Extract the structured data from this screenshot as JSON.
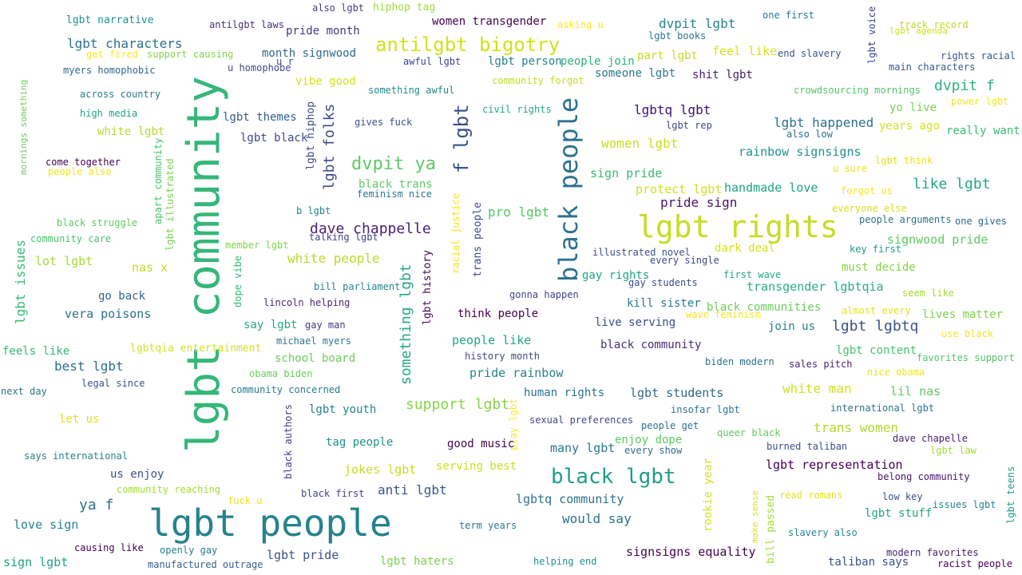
{
  "words": [
    {
      "text": "lgbt community",
      "color": "#35b779"
    },
    {
      "text": "lgbt people",
      "color": "#26828e"
    },
    {
      "text": "lgbt rights",
      "color": "#c2df23"
    },
    {
      "text": "black people",
      "color": "#2c728e"
    },
    {
      "text": "antilgbt bigotry",
      "color": "#d0e11c"
    },
    {
      "text": "black lgbt",
      "color": "#1f9e89"
    },
    {
      "text": "f lgbt",
      "color": "#3b528b"
    },
    {
      "text": "dvpit ya",
      "color": "#5ec962"
    },
    {
      "text": "lgbt folks",
      "color": "#3e4989"
    },
    {
      "text": "something lgbt",
      "color": "#22a884"
    },
    {
      "text": "dave chappelle",
      "color": "#482173"
    },
    {
      "text": "lgbt narrative",
      "color": "#21918c"
    },
    {
      "text": "antilgbt laws",
      "color": "#472d7b"
    },
    {
      "text": "also lgbt",
      "color": "#433e85"
    },
    {
      "text": "hiphop tag",
      "color": "#a0da39"
    },
    {
      "text": "women transgender",
      "color": "#440154"
    },
    {
      "text": "asking u",
      "color": "#fde725"
    },
    {
      "text": "one first",
      "color": "#2a788e"
    },
    {
      "text": "lgbt voice",
      "color": "#404688"
    },
    {
      "text": "track record",
      "color": "#b5de2b"
    },
    {
      "text": "lgbt agenda",
      "color": "#cae11f"
    },
    {
      "text": "lgbt characters",
      "color": "#2c728e"
    },
    {
      "text": "pride month",
      "color": "#443983"
    },
    {
      "text": "dvpit lgbt",
      "color": "#25848e"
    },
    {
      "text": "lgbt books",
      "color": "#2a768e"
    },
    {
      "text": "end slavery",
      "color": "#3a548c"
    },
    {
      "text": "rights racial",
      "color": "#3b528b"
    },
    {
      "text": "get fired",
      "color": "#fde725"
    },
    {
      "text": "support causing",
      "color": "#84d44b"
    },
    {
      "text": "month signwood",
      "color": "#31688e"
    },
    {
      "text": "awful lgbt",
      "color": "#414487"
    },
    {
      "text": "lgbt person",
      "color": "#26828e"
    },
    {
      "text": "people join",
      "color": "#2db27d"
    },
    {
      "text": "part lgbt",
      "color": "#c0df25"
    },
    {
      "text": "feel like",
      "color": "#d8e219"
    },
    {
      "text": "main characters",
      "color": "#375a8c"
    },
    {
      "text": "myers homophobic",
      "color": "#31688e"
    },
    {
      "text": "u homophobe",
      "color": "#3e4989"
    },
    {
      "text": "u r",
      "color": "#3d4d8a"
    },
    {
      "text": "someone lgbt",
      "color": "#2a788e"
    },
    {
      "text": "shit lgbt",
      "color": "#481a6c"
    },
    {
      "text": "vibe good",
      "color": "#d2e21b"
    },
    {
      "text": "community forgot",
      "color": "#c2df23"
    },
    {
      "text": "something awful",
      "color": "#238a8d"
    },
    {
      "text": "dvpit f",
      "color": "#2db27d"
    },
    {
      "text": "crowdsourcing mornings",
      "color": "#54c568"
    },
    {
      "text": "power lgbt",
      "color": "#f1e51d"
    },
    {
      "text": "across country",
      "color": "#287c8e"
    },
    {
      "text": "civil rights",
      "color": "#22a785"
    },
    {
      "text": "yo live",
      "color": "#7ad151"
    },
    {
      "text": "high media",
      "color": "#1fa187"
    },
    {
      "text": "lgbt themes",
      "color": "#355f8d"
    },
    {
      "text": "gives fuck",
      "color": "#3b528b"
    },
    {
      "text": "lgbtq lgbt",
      "color": "#3b0f70"
    },
    {
      "text": "lgbt rep",
      "color": "#404688"
    },
    {
      "text": "lgbt happened",
      "color": "#2c728e"
    },
    {
      "text": "years ago",
      "color": "#d5e21a"
    },
    {
      "text": "really want",
      "color": "#3bbb75"
    },
    {
      "text": "also low",
      "color": "#2e6f8e"
    },
    {
      "text": "white lgbt",
      "color": "#b2dd2d"
    },
    {
      "text": "lgbt black",
      "color": "#3f4889"
    },
    {
      "text": "women lgbt",
      "color": "#c8e020"
    },
    {
      "text": "lgbt hiphop",
      "color": "#3f4788"
    },
    {
      "text": "mornings something",
      "color": "#6ccd5a"
    },
    {
      "text": "come together",
      "color": "#440154"
    },
    {
      "text": "people also",
      "color": "#f4e61e"
    },
    {
      "text": "apart community",
      "color": "#4ac16d"
    },
    {
      "text": "lgbt illustrated",
      "color": "#7ad151"
    },
    {
      "text": "rainbow signsigns",
      "color": "#21918c"
    },
    {
      "text": "lgbt think",
      "color": "#e7e419"
    },
    {
      "text": "u sure",
      "color": "#eae51a"
    },
    {
      "text": "black trans",
      "color": "#5ec962"
    },
    {
      "text": "feminism nice",
      "color": "#2a788e"
    },
    {
      "text": "sign pride",
      "color": "#3aba76"
    },
    {
      "text": "protect lgbt",
      "color": "#d2e21b"
    },
    {
      "text": "handmade love",
      "color": "#20a486"
    },
    {
      "text": "forgot us",
      "color": "#f8e621"
    },
    {
      "text": "like lgbt",
      "color": "#22a785"
    },
    {
      "text": "b lgbt",
      "color": "#26828e"
    },
    {
      "text": "pride sign",
      "color": "#481467"
    },
    {
      "text": "everyone else",
      "color": "#d8e219"
    },
    {
      "text": "black struggle",
      "color": "#5ec962"
    },
    {
      "text": "people arguments",
      "color": "#2c728e"
    },
    {
      "text": "one gives",
      "color": "#31688e"
    },
    {
      "text": "racial justice",
      "color": "#f1e51d"
    },
    {
      "text": "trans people",
      "color": "#3e4989"
    },
    {
      "text": "pro lgbt",
      "color": "#54c568"
    },
    {
      "text": "community care",
      "color": "#4ac16d"
    },
    {
      "text": "talking lgbt",
      "color": "#414487"
    },
    {
      "text": "signwood pride",
      "color": "#5ec962"
    },
    {
      "text": "lgbt issues",
      "color": "#3aba76"
    },
    {
      "text": "member lgbt",
      "color": "#7fd34e"
    },
    {
      "text": "dark deal",
      "color": "#d8e219"
    },
    {
      "text": "key first",
      "color": "#1e9b8a"
    },
    {
      "text": "lot lgbt",
      "color": "#a5db36"
    },
    {
      "text": "white people",
      "color": "#b8de29"
    },
    {
      "text": "illustrated novel",
      "color": "#3b528b"
    },
    {
      "text": "every single",
      "color": "#3e4989"
    },
    {
      "text": "must decide",
      "color": "#86d549"
    },
    {
      "text": "nas x",
      "color": "#b8de29"
    },
    {
      "text": "dope vibe",
      "color": "#35b779"
    },
    {
      "text": "lgbt history",
      "color": "#440154"
    },
    {
      "text": "gay rights",
      "color": "#20a486"
    },
    {
      "text": "first wave",
      "color": "#22a785"
    },
    {
      "text": "gay students",
      "color": "#3e4989"
    },
    {
      "text": "seem like",
      "color": "#a0da39"
    },
    {
      "text": "bill parliament",
      "color": "#24868e"
    },
    {
      "text": "transgender lgbtqia",
      "color": "#28ae80"
    },
    {
      "text": "go back",
      "color": "#31688e"
    },
    {
      "text": "gonna happen",
      "color": "#414487"
    },
    {
      "text": "lincoln helping",
      "color": "#482878"
    },
    {
      "text": "kill sister",
      "color": "#2a788e"
    },
    {
      "text": "black communities",
      "color": "#6ccd5a"
    },
    {
      "text": "almost every",
      "color": "#e5e419"
    },
    {
      "text": "lives matter",
      "color": "#81d34d"
    },
    {
      "text": "vera poisons",
      "color": "#2c728e"
    },
    {
      "text": "think people",
      "color": "#440154"
    },
    {
      "text": "wave feminism",
      "color": "#f6e620"
    },
    {
      "text": "say lgbt",
      "color": "#23a983"
    },
    {
      "text": "gay man",
      "color": "#453781"
    },
    {
      "text": "live serving",
      "color": "#3e4989"
    },
    {
      "text": "join us",
      "color": "#26828e"
    },
    {
      "text": "lgbt lgbtq",
      "color": "#3b528b"
    },
    {
      "text": "use black",
      "color": "#f6e620"
    },
    {
      "text": "michael myers",
      "color": "#2a788e"
    },
    {
      "text": "people like",
      "color": "#22a785"
    },
    {
      "text": "black community",
      "color": "#472c7a"
    },
    {
      "text": "feels like",
      "color": "#35b779"
    },
    {
      "text": "lgbtqia entertainment",
      "color": "#d5e21a"
    },
    {
      "text": "school board",
      "color": "#6ccd5a"
    },
    {
      "text": "history month",
      "color": "#3e4989"
    },
    {
      "text": "lgbt content",
      "color": "#4ac16d"
    },
    {
      "text": "favorites support",
      "color": "#52c569"
    },
    {
      "text": "biden modern",
      "color": "#2d708e"
    },
    {
      "text": "best lgbt",
      "color": "#2d708e"
    },
    {
      "text": "pride rainbow",
      "color": "#25848e"
    },
    {
      "text": "sales pitch",
      "color": "#481f70"
    },
    {
      "text": "nice obama",
      "color": "#f1e51d"
    },
    {
      "text": "obama biden",
      "color": "#6ccd5a"
    },
    {
      "text": "legal since",
      "color": "#3b528b"
    },
    {
      "text": "community concerned",
      "color": "#287c8e"
    },
    {
      "text": "human rights",
      "color": "#2c728e"
    },
    {
      "text": "lgbt students",
      "color": "#31688e"
    },
    {
      "text": "white man",
      "color": "#d0e11c"
    },
    {
      "text": "lil nas",
      "color": "#5ec962"
    },
    {
      "text": "next day",
      "color": "#2a788e"
    },
    {
      "text": "support lgbt",
      "color": "#86d549"
    },
    {
      "text": "insofar lgbt",
      "color": "#2c728e"
    },
    {
      "text": "lgbt youth",
      "color": "#26828e"
    },
    {
      "text": "international lgbt",
      "color": "#2c728e"
    },
    {
      "text": "let us",
      "color": "#e2e418"
    },
    {
      "text": "sexual preferences",
      "color": "#3e4989"
    },
    {
      "text": "black authors",
      "color": "#433e85"
    },
    {
      "text": "play lgbt",
      "color": "#fde725"
    },
    {
      "text": "people get",
      "color": "#2d708e"
    },
    {
      "text": "queer black",
      "color": "#5ec962"
    },
    {
      "text": "trans women",
      "color": "#addc30"
    },
    {
      "text": "tag people",
      "color": "#21918c"
    },
    {
      "text": "enjoy dope",
      "color": "#5ec962"
    },
    {
      "text": "dave chapelle",
      "color": "#482173"
    },
    {
      "text": "good music",
      "color": "#3e0751"
    },
    {
      "text": "burned taliban",
      "color": "#3b528b"
    },
    {
      "text": "says international",
      "color": "#26828e"
    },
    {
      "text": "many lgbt",
      "color": "#2a788e"
    },
    {
      "text": "every show",
      "color": "#31688e"
    },
    {
      "text": "lgbt law",
      "color": "#a5db36"
    },
    {
      "text": "jokes lgbt",
      "color": "#c0df25"
    },
    {
      "text": "serving best",
      "color": "#cae11f"
    },
    {
      "text": "rookie year",
      "color": "#d5e21a"
    },
    {
      "text": "lgbt representation",
      "color": "#440154"
    },
    {
      "text": "us enjoy",
      "color": "#3b528b"
    },
    {
      "text": "belong community",
      "color": "#481769"
    },
    {
      "text": "lgbt teens",
      "color": "#1f9e89"
    },
    {
      "text": "community reaching",
      "color": "#a5db36"
    },
    {
      "text": "black first",
      "color": "#414487"
    },
    {
      "text": "anti lgbt",
      "color": "#39568c"
    },
    {
      "text": "ya f",
      "color": "#2c728e"
    },
    {
      "text": "fuck u",
      "color": "#eae51a"
    },
    {
      "text": "make sense",
      "color": "#dde318"
    },
    {
      "text": "read romans",
      "color": "#e2e418"
    },
    {
      "text": "low key",
      "color": "#3b528b"
    },
    {
      "text": "lgbtq community",
      "color": "#2c728e"
    },
    {
      "text": "bill passed",
      "color": "#a5db36"
    },
    {
      "text": "issues lgbt",
      "color": "#26828e"
    },
    {
      "text": "lgbt stuff",
      "color": "#20a486"
    },
    {
      "text": "love sign",
      "color": "#26828e"
    },
    {
      "text": "term years",
      "color": "#2a788e"
    },
    {
      "text": "would say",
      "color": "#2d708e"
    },
    {
      "text": "causing like",
      "color": "#440154"
    },
    {
      "text": "openly gay",
      "color": "#287c8e"
    },
    {
      "text": "slavery also",
      "color": "#24868e"
    },
    {
      "text": "lgbt pride",
      "color": "#3b528b"
    },
    {
      "text": "signsigns equality",
      "color": "#440154"
    },
    {
      "text": "modern favorites",
      "color": "#481a6c"
    },
    {
      "text": "sign lgbt",
      "color": "#1fa187"
    },
    {
      "text": "manufactured outrage",
      "color": "#355f8d"
    },
    {
      "text": "lgbt haters",
      "color": "#7ad151"
    },
    {
      "text": "helping end",
      "color": "#21918c"
    },
    {
      "text": "taliban says",
      "color": "#3b528b"
    },
    {
      "text": "racist people",
      "color": "#440154"
    }
  ]
}
